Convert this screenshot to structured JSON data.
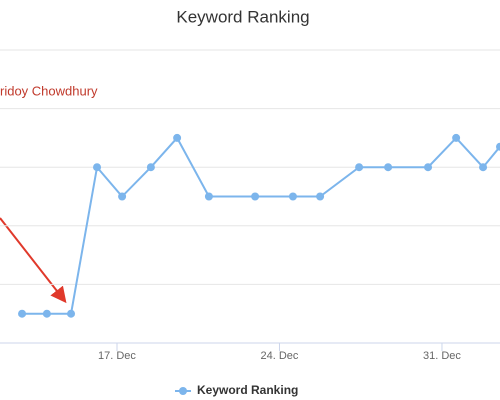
{
  "chart_data": {
    "type": "line",
    "title": "Keyword Ranking",
    "annotation": "ridoy Chowdhury",
    "x": [
      12.91,
      13.98,
      15.02,
      16.14,
      17.22,
      18.46,
      19.59,
      20.96,
      22.95,
      24.58,
      25.75,
      27.43,
      28.68,
      30.4,
      31.61,
      32.77,
      33.5
    ],
    "series": [
      {
        "name": "Keyword Ranking",
        "color": "#7cb5ec",
        "values": [
          0.5,
          0.5,
          0.5,
          3,
          2.5,
          3,
          3.5,
          2.5,
          2.5,
          2.5,
          2.5,
          3,
          3,
          3,
          3.5,
          3,
          3.35
        ]
      }
    ],
    "xlim": [
      11.96,
      33.5
    ],
    "xticks": [
      {
        "value": 17,
        "label": "17. Dec"
      },
      {
        "value": 24,
        "label": "24. Dec"
      },
      {
        "value": 31,
        "label": "31. Dec"
      }
    ],
    "ylim": [
      0,
      5
    ],
    "yticks": [
      0,
      1,
      2,
      3,
      4,
      5
    ],
    "grid": true
  }
}
